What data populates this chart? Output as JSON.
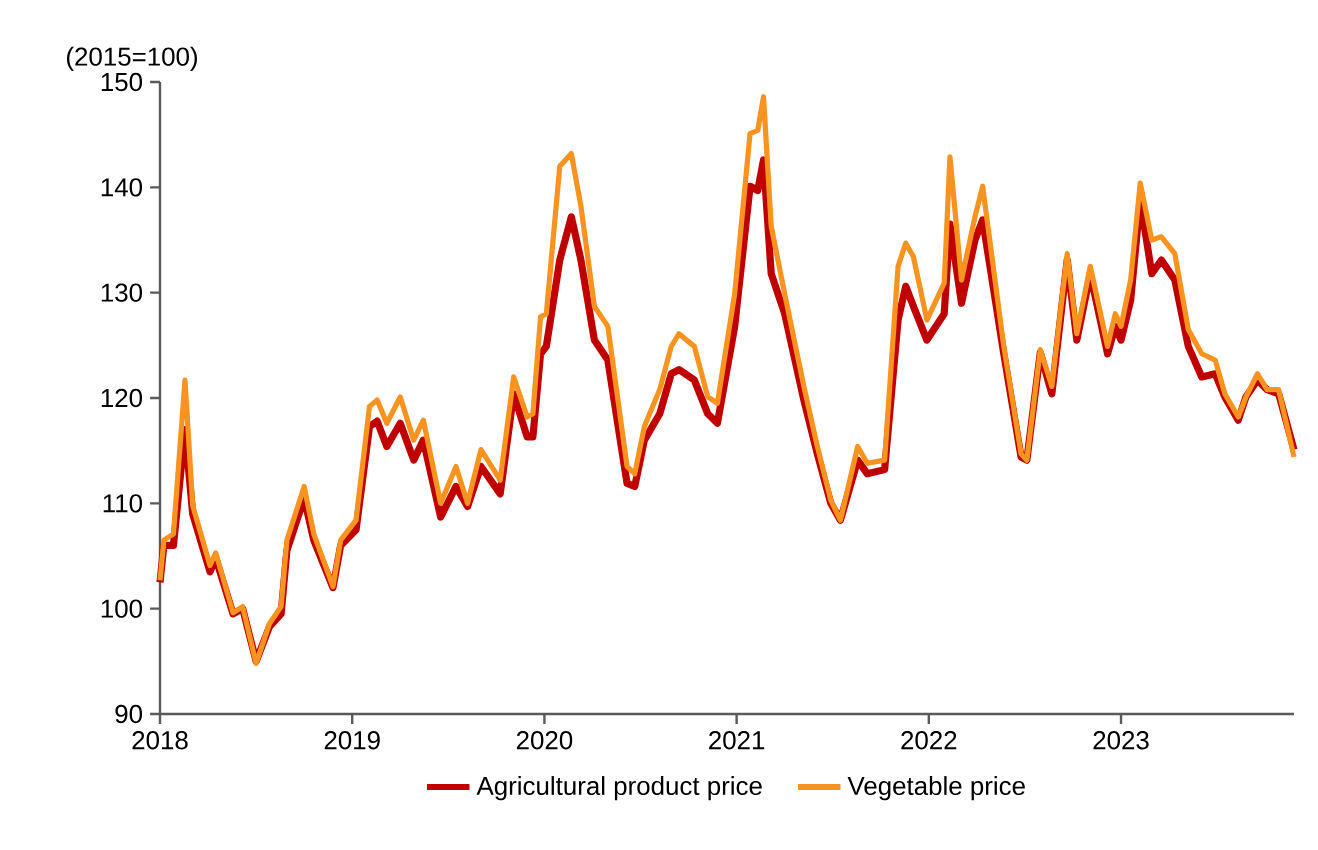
{
  "chart_data": {
    "type": "line",
    "ylabel": "(2015=100)",
    "x": [
      2018.0,
      2018.02,
      2018.07,
      2018.13,
      2018.17,
      2018.26,
      2018.29,
      2018.38,
      2018.43,
      2018.5,
      2018.57,
      2018.63,
      2018.66,
      2018.75,
      2018.8,
      2018.9,
      2018.94,
      2019.02,
      2019.09,
      2019.13,
      2019.18,
      2019.25,
      2019.32,
      2019.37,
      2019.46,
      2019.54,
      2019.6,
      2019.67,
      2019.77,
      2019.84,
      2019.91,
      2019.94,
      2019.98,
      2020.01,
      2020.08,
      2020.14,
      2020.19,
      2020.26,
      2020.33,
      2020.43,
      2020.47,
      2020.52,
      2020.6,
      2020.66,
      2020.7,
      2020.78,
      2020.85,
      2020.9,
      2020.99,
      2021.07,
      2021.11,
      2021.14,
      2021.18,
      2021.25,
      2021.35,
      2021.42,
      2021.49,
      2021.54,
      2021.63,
      2021.68,
      2021.77,
      2021.84,
      2021.88,
      2021.92,
      2021.99,
      2022.08,
      2022.11,
      2022.17,
      2022.24,
      2022.28,
      2022.39,
      2022.48,
      2022.51,
      2022.58,
      2022.64,
      2022.72,
      2022.77,
      2022.84,
      2022.93,
      2022.97,
      2023.0,
      2023.05,
      2023.1,
      2023.16,
      2023.21,
      2023.28,
      2023.35,
      2023.42,
      2023.49,
      2023.54,
      2023.61,
      2023.65,
      2023.71,
      2023.76,
      2023.82,
      2023.9
    ],
    "series": [
      {
        "name": "Agricultural product price",
        "color": "#c00000",
        "values": [
          102.5,
          106,
          106,
          117,
          109,
          103.5,
          104.8,
          99.5,
          100,
          95,
          98.3,
          99.5,
          105.5,
          110.5,
          106.5,
          102,
          106,
          107.5,
          117.3,
          117.8,
          115.4,
          117.6,
          114.1,
          116,
          108.7,
          111.6,
          109.7,
          113.5,
          110.9,
          120.4,
          116.3,
          116.3,
          124.2,
          124.9,
          133.1,
          137.2,
          133.1,
          125.5,
          123.6,
          111.9,
          111.6,
          116.0,
          118.5,
          122.3,
          122.7,
          121.7,
          118.5,
          117.6,
          126.8,
          140.1,
          139.7,
          142.6,
          131.8,
          128.0,
          119.8,
          114.7,
          110.0,
          108.4,
          114.1,
          112.8,
          113.2,
          127.4,
          130.6,
          128.7,
          125.5,
          128.0,
          136.5,
          129.0,
          135.0,
          136.9,
          124.2,
          114.4,
          114.1,
          124.3,
          120.4,
          133.1,
          125.5,
          131.8,
          124.2,
          126.8,
          125.5,
          129.3,
          138.8,
          131.8,
          133.1,
          131.2,
          124.9,
          122.0,
          122.3,
          120.1,
          117.9,
          120.1,
          121.7,
          120.8,
          120.4,
          115.1
        ]
      },
      {
        "name": "Vegetable price",
        "color": "#f7931e",
        "values": [
          102.7,
          106.5,
          107.1,
          121.7,
          109.8,
          104.1,
          105.3,
          99.6,
          100.2,
          94.8,
          98.6,
          100.2,
          106.5,
          111.6,
          107.1,
          102.1,
          106.5,
          108.4,
          119.2,
          119.8,
          117.6,
          120.1,
          116.0,
          117.9,
          110.0,
          113.5,
          110.0,
          115.1,
          112.2,
          122.0,
          118.2,
          118.5,
          127.7,
          128.0,
          142.0,
          143.2,
          138.2,
          128.7,
          126.8,
          113.5,
          112.8,
          117.3,
          120.8,
          124.9,
          126.1,
          124.9,
          120.1,
          119.5,
          129.9,
          145.1,
          145.4,
          148.6,
          136.3,
          129.9,
          121.1,
          115.4,
          110.3,
          108.4,
          115.4,
          113.8,
          114.1,
          132.5,
          134.7,
          133.4,
          127.4,
          130.9,
          142.9,
          131.2,
          137.2,
          140.1,
          124.9,
          114.7,
          114.1,
          124.6,
          121.1,
          133.7,
          126.1,
          132.5,
          124.9,
          128.0,
          126.8,
          131.2,
          140.4,
          135.0,
          135.3,
          133.7,
          126.5,
          124.2,
          123.6,
          120.4,
          118.2,
          120.1,
          122.3,
          120.8,
          120.8,
          114.4
        ]
      }
    ],
    "xlim": [
      2018,
      2023.9
    ],
    "xticks": [
      2018,
      2019,
      2020,
      2021,
      2022,
      2023
    ],
    "ylim": [
      90,
      150
    ],
    "yticks": [
      90,
      100,
      110,
      120,
      130,
      140,
      150
    ],
    "legend": "bottom",
    "grid": false,
    "marker": "none",
    "line_style": "solid"
  }
}
